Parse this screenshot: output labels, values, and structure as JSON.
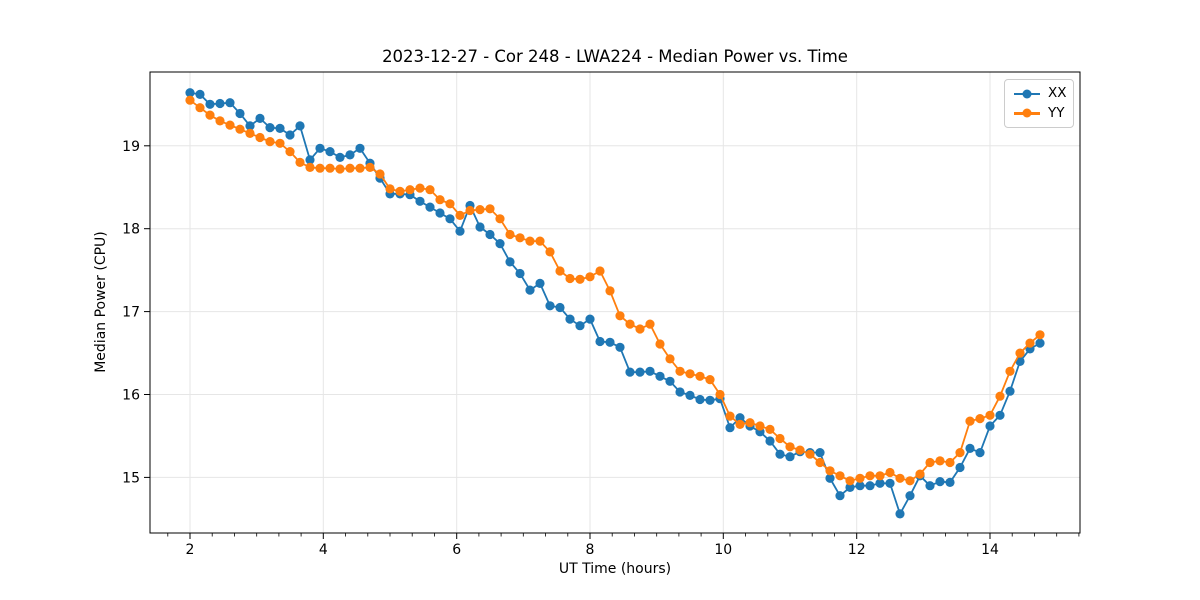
{
  "chart_data": {
    "type": "line",
    "title": "2023-12-27 - Cor 248 - LWA224 - Median Power vs. Time",
    "xlabel": "UT Time (hours)",
    "ylabel": "Median Power (CPU)",
    "xlim": [
      1.4,
      15.35
    ],
    "ylim": [
      14.33,
      19.89
    ],
    "xticks": [
      2,
      4,
      6,
      8,
      10,
      12,
      14
    ],
    "yticks": [
      15,
      16,
      17,
      18,
      19
    ],
    "minor_xtick_step": 0.3333,
    "grid": true,
    "grid_color": "#e6e6e6",
    "legend_position": "upper right",
    "marker": "o",
    "x": [
      2.0,
      2.15,
      2.3,
      2.45,
      2.6,
      2.75,
      2.9,
      3.05,
      3.2,
      3.35,
      3.5,
      3.65,
      3.8,
      3.95,
      4.1,
      4.25,
      4.4,
      4.55,
      4.7,
      4.85,
      5.0,
      5.15,
      5.3,
      5.45,
      5.6,
      5.75,
      5.9,
      6.05,
      6.2,
      6.35,
      6.5,
      6.65,
      6.8,
      6.95,
      7.1,
      7.25,
      7.4,
      7.55,
      7.7,
      7.85,
      8.0,
      8.15,
      8.3,
      8.45,
      8.6,
      8.75,
      8.9,
      9.05,
      9.2,
      9.35,
      9.5,
      9.65,
      9.8,
      9.95,
      10.1,
      10.25,
      10.4,
      10.55,
      10.7,
      10.85,
      11.0,
      11.15,
      11.3,
      11.45,
      11.6,
      11.75,
      11.9,
      12.05,
      12.2,
      12.35,
      12.5,
      12.65,
      12.8,
      12.95,
      13.1,
      13.25,
      13.4,
      13.55,
      13.7,
      13.85,
      14.0,
      14.15,
      14.3,
      14.45,
      14.6,
      14.75
    ],
    "series": [
      {
        "name": "XX",
        "color": "#1f77b4",
        "values": [
          19.64,
          19.62,
          19.5,
          19.51,
          19.52,
          19.39,
          19.24,
          19.33,
          19.22,
          19.21,
          19.13,
          19.24,
          18.83,
          18.97,
          18.93,
          18.86,
          18.89,
          18.97,
          18.79,
          18.61,
          18.42,
          18.42,
          18.41,
          18.33,
          18.26,
          18.19,
          18.12,
          17.97,
          18.28,
          18.02,
          17.93,
          17.82,
          17.6,
          17.46,
          17.26,
          17.34,
          17.07,
          17.05,
          16.91,
          16.83,
          16.91,
          16.64,
          16.63,
          16.57,
          16.27,
          16.27,
          16.28,
          16.22,
          16.16,
          16.03,
          15.99,
          15.94,
          15.93,
          15.95,
          15.6,
          15.72,
          15.62,
          15.55,
          15.44,
          15.28,
          15.25,
          15.31,
          15.3,
          15.3,
          14.99,
          14.78,
          14.88,
          14.9,
          14.9,
          14.93,
          14.93,
          14.56,
          14.78,
          15.02,
          14.9,
          14.95,
          14.94,
          15.12,
          15.35,
          15.3,
          15.62,
          15.75,
          16.04,
          16.4,
          16.55,
          16.62
        ]
      },
      {
        "name": "YY",
        "color": "#ff7f0e",
        "values": [
          19.55,
          19.46,
          19.37,
          19.3,
          19.25,
          19.2,
          19.15,
          19.1,
          19.05,
          19.03,
          18.93,
          18.8,
          18.74,
          18.73,
          18.73,
          18.72,
          18.73,
          18.73,
          18.74,
          18.66,
          18.48,
          18.45,
          18.47,
          18.49,
          18.47,
          18.35,
          18.3,
          18.16,
          18.22,
          18.23,
          18.24,
          18.12,
          17.93,
          17.89,
          17.85,
          17.85,
          17.72,
          17.49,
          17.4,
          17.39,
          17.42,
          17.49,
          17.25,
          16.95,
          16.85,
          16.79,
          16.85,
          16.61,
          16.43,
          16.28,
          16.25,
          16.22,
          16.18,
          16.0,
          15.74,
          15.64,
          15.66,
          15.62,
          15.58,
          15.47,
          15.37,
          15.33,
          15.28,
          15.18,
          15.08,
          15.02,
          14.96,
          14.99,
          15.02,
          15.02,
          15.06,
          14.99,
          14.96,
          15.04,
          15.18,
          15.2,
          15.18,
          15.3,
          15.68,
          15.71,
          15.75,
          15.98,
          16.28,
          16.5,
          16.62,
          16.72
        ]
      }
    ]
  }
}
